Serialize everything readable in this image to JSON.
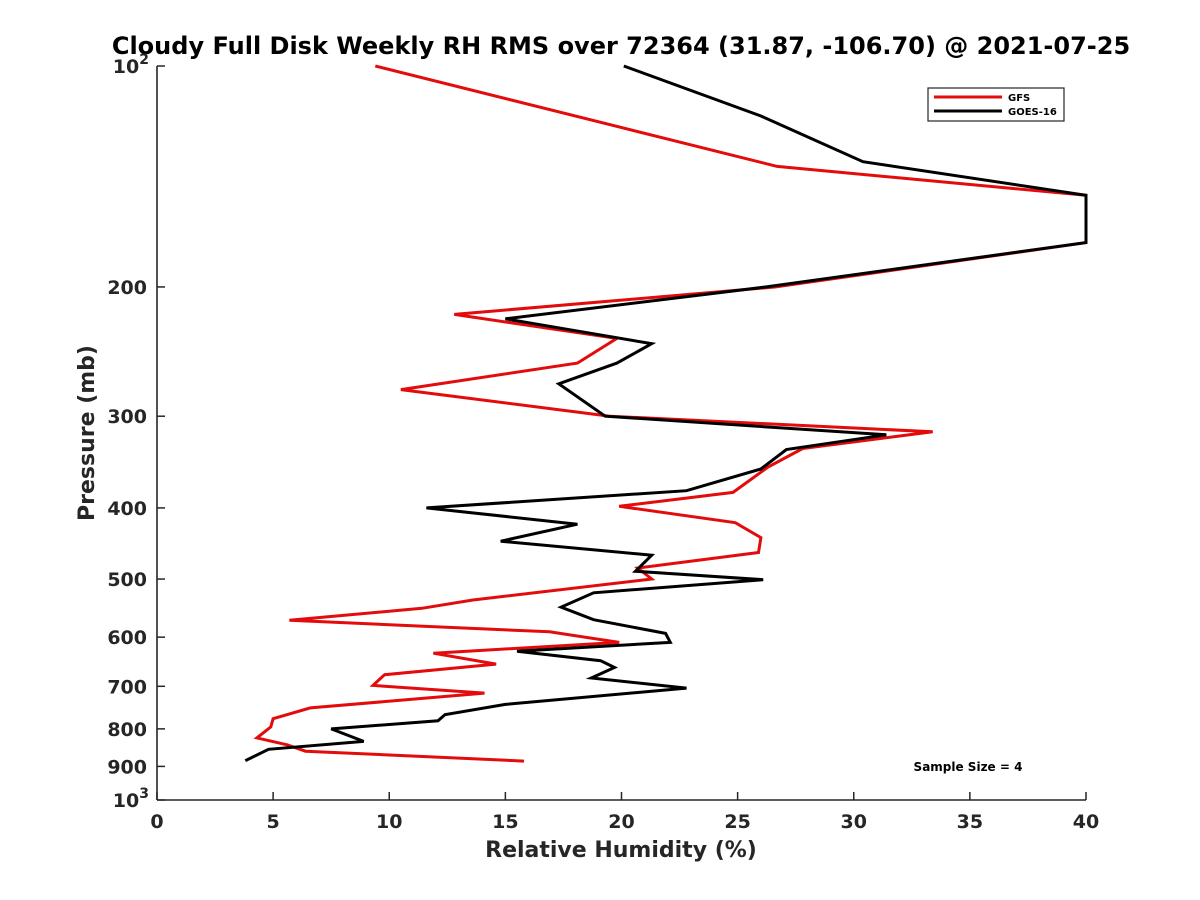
{
  "chart_data": {
    "type": "line",
    "title": "Cloudy Full Disk Weekly RH RMS over 72364 (31.87, -106.70) @ 2021-07-25",
    "xlabel": "Relative Humidity (%)",
    "ylabel": "Pressure (mb)",
    "xlim": [
      0,
      40
    ],
    "ylim": [
      100,
      1000
    ],
    "y_scale": "log",
    "y_reversed": true,
    "x_ticks": [
      "0",
      "5",
      "10",
      "15",
      "20",
      "25",
      "30",
      "35",
      "40"
    ],
    "y_ticks": [
      {
        "value": 100,
        "base": "10",
        "exp": "2"
      },
      {
        "value": 200,
        "label": "200"
      },
      {
        "value": 300,
        "label": "300"
      },
      {
        "value": 400,
        "label": "400"
      },
      {
        "value": 500,
        "label": "500"
      },
      {
        "value": 600,
        "label": "600"
      },
      {
        "value": 700,
        "label": "700"
      },
      {
        "value": 800,
        "label": "800"
      },
      {
        "value": 900,
        "label": "900"
      },
      {
        "value": 1000,
        "base": "10",
        "exp": "3"
      }
    ],
    "legend_position": "top-right",
    "annotation": "Sample Size = 4",
    "series": [
      {
        "name": "GFS",
        "color": "#e30b0b",
        "points": [
          [
            9.4,
            100
          ],
          [
            26.7,
            137
          ],
          [
            40,
            150
          ],
          [
            40,
            174
          ],
          [
            26.6,
            200
          ],
          [
            12.8,
            218
          ],
          [
            19.8,
            235
          ],
          [
            18.1,
            254
          ],
          [
            10.5,
            276
          ],
          [
            19.5,
            300
          ],
          [
            33.4,
            315
          ],
          [
            27.8,
            332
          ],
          [
            26.3,
            352
          ],
          [
            24.8,
            381
          ],
          [
            19.9,
            398
          ],
          [
            24.9,
            419
          ],
          [
            26.0,
            439
          ],
          [
            25.9,
            460
          ],
          [
            20.7,
            483
          ],
          [
            21.3,
            500
          ],
          [
            13.6,
            534
          ],
          [
            11.4,
            548
          ],
          [
            5.7,
            569
          ],
          [
            16.9,
            590
          ],
          [
            19.9,
            610
          ],
          [
            11.9,
            631
          ],
          [
            14.6,
            653
          ],
          [
            9.8,
            675
          ],
          [
            9.3,
            698
          ],
          [
            14.1,
            715
          ],
          [
            6.6,
            749
          ],
          [
            5.0,
            775
          ],
          [
            4.9,
            795
          ],
          [
            4.3,
            823
          ],
          [
            5.6,
            841
          ],
          [
            6.4,
            858
          ],
          [
            15.8,
            885
          ]
        ]
      },
      {
        "name": "GOES-16",
        "color": "#000000",
        "points": [
          [
            20.1,
            100
          ],
          [
            26.0,
            117
          ],
          [
            30.4,
            135
          ],
          [
            40,
            150
          ],
          [
            40,
            174
          ],
          [
            26.2,
            200
          ],
          [
            15.0,
            221
          ],
          [
            21.3,
            239
          ],
          [
            19.8,
            254
          ],
          [
            17.3,
            271
          ],
          [
            19.3,
            300
          ],
          [
            31.4,
            318
          ],
          [
            27.1,
            333
          ],
          [
            26.0,
            354
          ],
          [
            22.8,
            379
          ],
          [
            11.6,
            400
          ],
          [
            18.1,
            421
          ],
          [
            14.8,
            444
          ],
          [
            21.3,
            464
          ],
          [
            20.6,
            488
          ],
          [
            26.1,
            501
          ],
          [
            18.8,
            522
          ],
          [
            17.4,
            546
          ],
          [
            18.8,
            568
          ],
          [
            21.9,
            593
          ],
          [
            22.1,
            610
          ],
          [
            15.5,
            627
          ],
          [
            19.1,
            646
          ],
          [
            19.7,
            660
          ],
          [
            18.7,
            682
          ],
          [
            22.8,
            704
          ],
          [
            15.0,
            741
          ],
          [
            12.4,
            765
          ],
          [
            12.1,
            780
          ],
          [
            7.5,
            800
          ],
          [
            8.9,
            832
          ],
          [
            4.8,
            853
          ],
          [
            3.8,
            884
          ]
        ]
      }
    ]
  }
}
